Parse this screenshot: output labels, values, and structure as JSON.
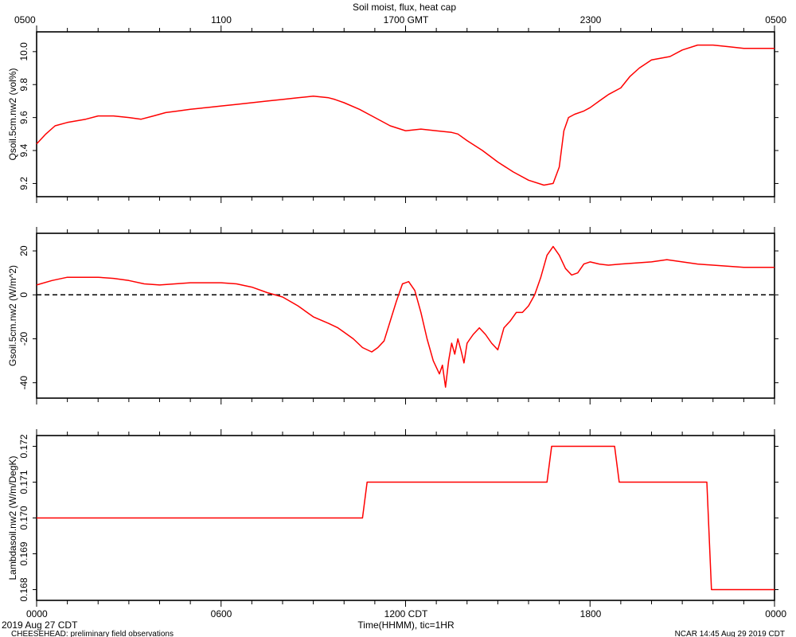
{
  "title": "Soil moist, flux, heat cap",
  "top_axis": {
    "labels": [
      "0500",
      "1100",
      "1700 GMT",
      "2300",
      "0500"
    ]
  },
  "bottom_axis": {
    "labels": [
      "0000",
      "0600",
      "1200 CDT",
      "1800",
      "0000"
    ],
    "xlabel": "Time(HHMM), tic=1HR"
  },
  "footer": {
    "date": "2019 Aug 27 CDT",
    "left": "CHEESEHEAD: preliminary field observations",
    "right": "NCAR 14:45 Aug 29 2019 CDT"
  },
  "colors": {
    "series": "#ff0000",
    "axis": "#000000"
  },
  "chart_data": [
    {
      "type": "line",
      "ylabel": "Qsoil.5cm.nw2 (vol%)",
      "xlim": [
        0,
        24
      ],
      "ylim": [
        9.12,
        10.12
      ],
      "yticks": [
        9.2,
        9.4,
        9.6,
        9.8,
        10.0
      ],
      "ytick_labels": [
        "9.2",
        "9.4",
        "9.6",
        "9.8",
        "10.0"
      ],
      "series": [
        {
          "x": [
            0,
            0.3,
            0.6,
            1.0,
            1.3,
            1.6,
            2.0,
            2.5,
            3.0,
            3.4,
            3.8,
            4.0,
            4.2,
            4.6,
            5.0,
            5.5,
            6.0,
            6.5,
            7.0,
            7.5,
            8.0,
            8.5,
            9.0,
            9.5,
            9.7,
            10.0,
            10.5,
            11.0,
            11.5,
            12.0,
            12.5,
            13.0,
            13.5,
            13.7,
            14.0,
            14.5,
            15.0,
            15.5,
            16.0,
            16.5,
            16.8,
            17.0,
            17.15,
            17.3,
            17.5,
            17.8,
            18.0,
            18.3,
            18.6,
            19.0,
            19.3,
            19.6,
            20.0,
            20.3,
            20.6,
            21.0,
            21.5,
            22.0,
            22.5,
            23.0,
            23.5,
            24.0
          ],
          "y": [
            9.44,
            9.5,
            9.55,
            9.57,
            9.58,
            9.59,
            9.61,
            9.61,
            9.6,
            9.59,
            9.61,
            9.62,
            9.63,
            9.64,
            9.65,
            9.66,
            9.67,
            9.68,
            9.69,
            9.7,
            9.71,
            9.72,
            9.73,
            9.72,
            9.71,
            9.69,
            9.65,
            9.6,
            9.55,
            9.52,
            9.53,
            9.52,
            9.51,
            9.5,
            9.46,
            9.4,
            9.33,
            9.27,
            9.22,
            9.19,
            9.2,
            9.3,
            9.52,
            9.6,
            9.62,
            9.64,
            9.66,
            9.7,
            9.74,
            9.78,
            9.85,
            9.9,
            9.95,
            9.96,
            9.97,
            10.01,
            10.04,
            10.04,
            10.03,
            10.02,
            10.02,
            10.02
          ]
        }
      ]
    },
    {
      "type": "line",
      "ylabel": "Gsoil.5cm.nw2 (W/m^2)",
      "xlim": [
        0,
        24
      ],
      "ylim": [
        -47,
        28
      ],
      "yticks": [
        -40,
        -20,
        0,
        20
      ],
      "ytick_labels": [
        "-40",
        "-20",
        "0",
        "20"
      ],
      "reference_line": 0,
      "series": [
        {
          "x": [
            0,
            0.5,
            1.0,
            1.5,
            2.0,
            2.5,
            3.0,
            3.5,
            4.0,
            4.5,
            5.0,
            5.5,
            6.0,
            6.5,
            7.0,
            7.5,
            8.0,
            8.5,
            9.0,
            9.5,
            9.8,
            10.0,
            10.3,
            10.6,
            10.9,
            11.1,
            11.3,
            11.5,
            11.7,
            11.9,
            12.1,
            12.3,
            12.5,
            12.7,
            12.9,
            13.1,
            13.2,
            13.3,
            13.4,
            13.5,
            13.6,
            13.7,
            13.8,
            13.9,
            14.0,
            14.1,
            14.2,
            14.4,
            14.6,
            14.8,
            15.0,
            15.2,
            15.4,
            15.6,
            15.8,
            16.0,
            16.2,
            16.4,
            16.6,
            16.8,
            17.0,
            17.2,
            17.4,
            17.6,
            17.8,
            18.0,
            18.3,
            18.6,
            19.0,
            19.5,
            20.0,
            20.5,
            21.0,
            21.5,
            22.0,
            22.5,
            23.0,
            23.5,
            24.0
          ],
          "y": [
            4.5,
            6.5,
            8,
            8,
            8,
            7.5,
            6.5,
            5,
            4.5,
            5,
            5.5,
            5.5,
            5.5,
            5,
            3.5,
            1,
            -1,
            -5,
            -10,
            -13,
            -15,
            -17,
            -20,
            -24,
            -26,
            -24,
            -21,
            -12,
            -3,
            5,
            6,
            2,
            -8,
            -20,
            -30,
            -36,
            -32,
            -42,
            -30,
            -22,
            -27,
            -20,
            -25,
            -31,
            -22,
            -20,
            -18,
            -15,
            -18,
            -22,
            -25,
            -15,
            -12,
            -8,
            -8,
            -5,
            0,
            8,
            18,
            22,
            18,
            12,
            9,
            10,
            14,
            15,
            14,
            13.5,
            14,
            14.5,
            15,
            16,
            15,
            14,
            13.5,
            13,
            12.5,
            12.5,
            12.5
          ]
        }
      ]
    },
    {
      "type": "line",
      "ylabel": "Lambdasoil.nw2 (W/m/DegK)",
      "xlim": [
        0,
        24
      ],
      "ylim": [
        0.1677,
        0.1723
      ],
      "yticks": [
        0.168,
        0.169,
        0.17,
        0.171,
        0.172
      ],
      "ytick_labels": [
        "0.168",
        "0.169",
        "0.170",
        "0.171",
        "0.172"
      ],
      "series": [
        {
          "x": [
            0,
            10.6,
            10.75,
            16.6,
            16.75,
            18.8,
            18.95,
            21.8,
            21.95,
            24.0
          ],
          "y": [
            0.17,
            0.17,
            0.171,
            0.171,
            0.172,
            0.172,
            0.171,
            0.171,
            0.168,
            0.168
          ]
        }
      ]
    }
  ]
}
